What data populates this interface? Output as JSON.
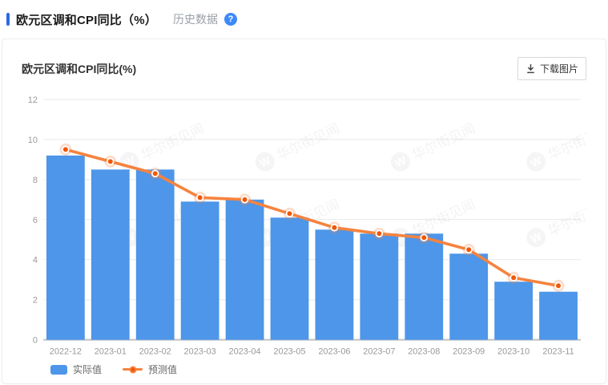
{
  "header": {
    "title": "欧元区调和CPI同比（%）",
    "history_link": "历史数据",
    "help_icon_glyph": "?"
  },
  "chart": {
    "title": "欧元区调和CPI同比(%)",
    "download_label": "下载图片",
    "legend": {
      "actual": "实际值",
      "forecast": "预测值"
    }
  },
  "watermark": {
    "logo_letter": "W",
    "text": "华尔街见闻"
  },
  "colors": {
    "accent_bar": "#2D6AE0",
    "help_icon": "#3D8AF7",
    "bar": "#4D96E9",
    "line": "#F5833F",
    "line_point": "#F25708",
    "grid": "#E9E9E9",
    "axis": "#C2C2C2",
    "axis_text": "#999999"
  },
  "chart_data": {
    "type": "bar",
    "title": "欧元区调和CPI同比(%)",
    "categories": [
      "2022-12",
      "2023-01",
      "2023-02",
      "2023-03",
      "2023-04",
      "2023-05",
      "2023-06",
      "2023-07",
      "2023-08",
      "2023-09",
      "2023-10",
      "2023-11"
    ],
    "series": [
      {
        "name": "实际值",
        "type": "bar",
        "color": "#4D96E9",
        "values": [
          9.2,
          8.5,
          8.5,
          6.9,
          7.0,
          6.1,
          5.5,
          5.3,
          5.3,
          4.3,
          2.9,
          2.4
        ]
      },
      {
        "name": "预测值",
        "type": "line",
        "color": "#F5833F",
        "point_color": "#F25708",
        "values": [
          9.5,
          8.9,
          8.3,
          7.1,
          7.0,
          6.3,
          5.6,
          5.3,
          5.1,
          4.5,
          3.1,
          2.7
        ]
      }
    ],
    "xlabel": "",
    "ylabel": "",
    "ylim": [
      0,
      12
    ],
    "ytick_step": 2,
    "grid": true,
    "legend_position": "bottom-left",
    "watermark": "华尔街见闻"
  }
}
